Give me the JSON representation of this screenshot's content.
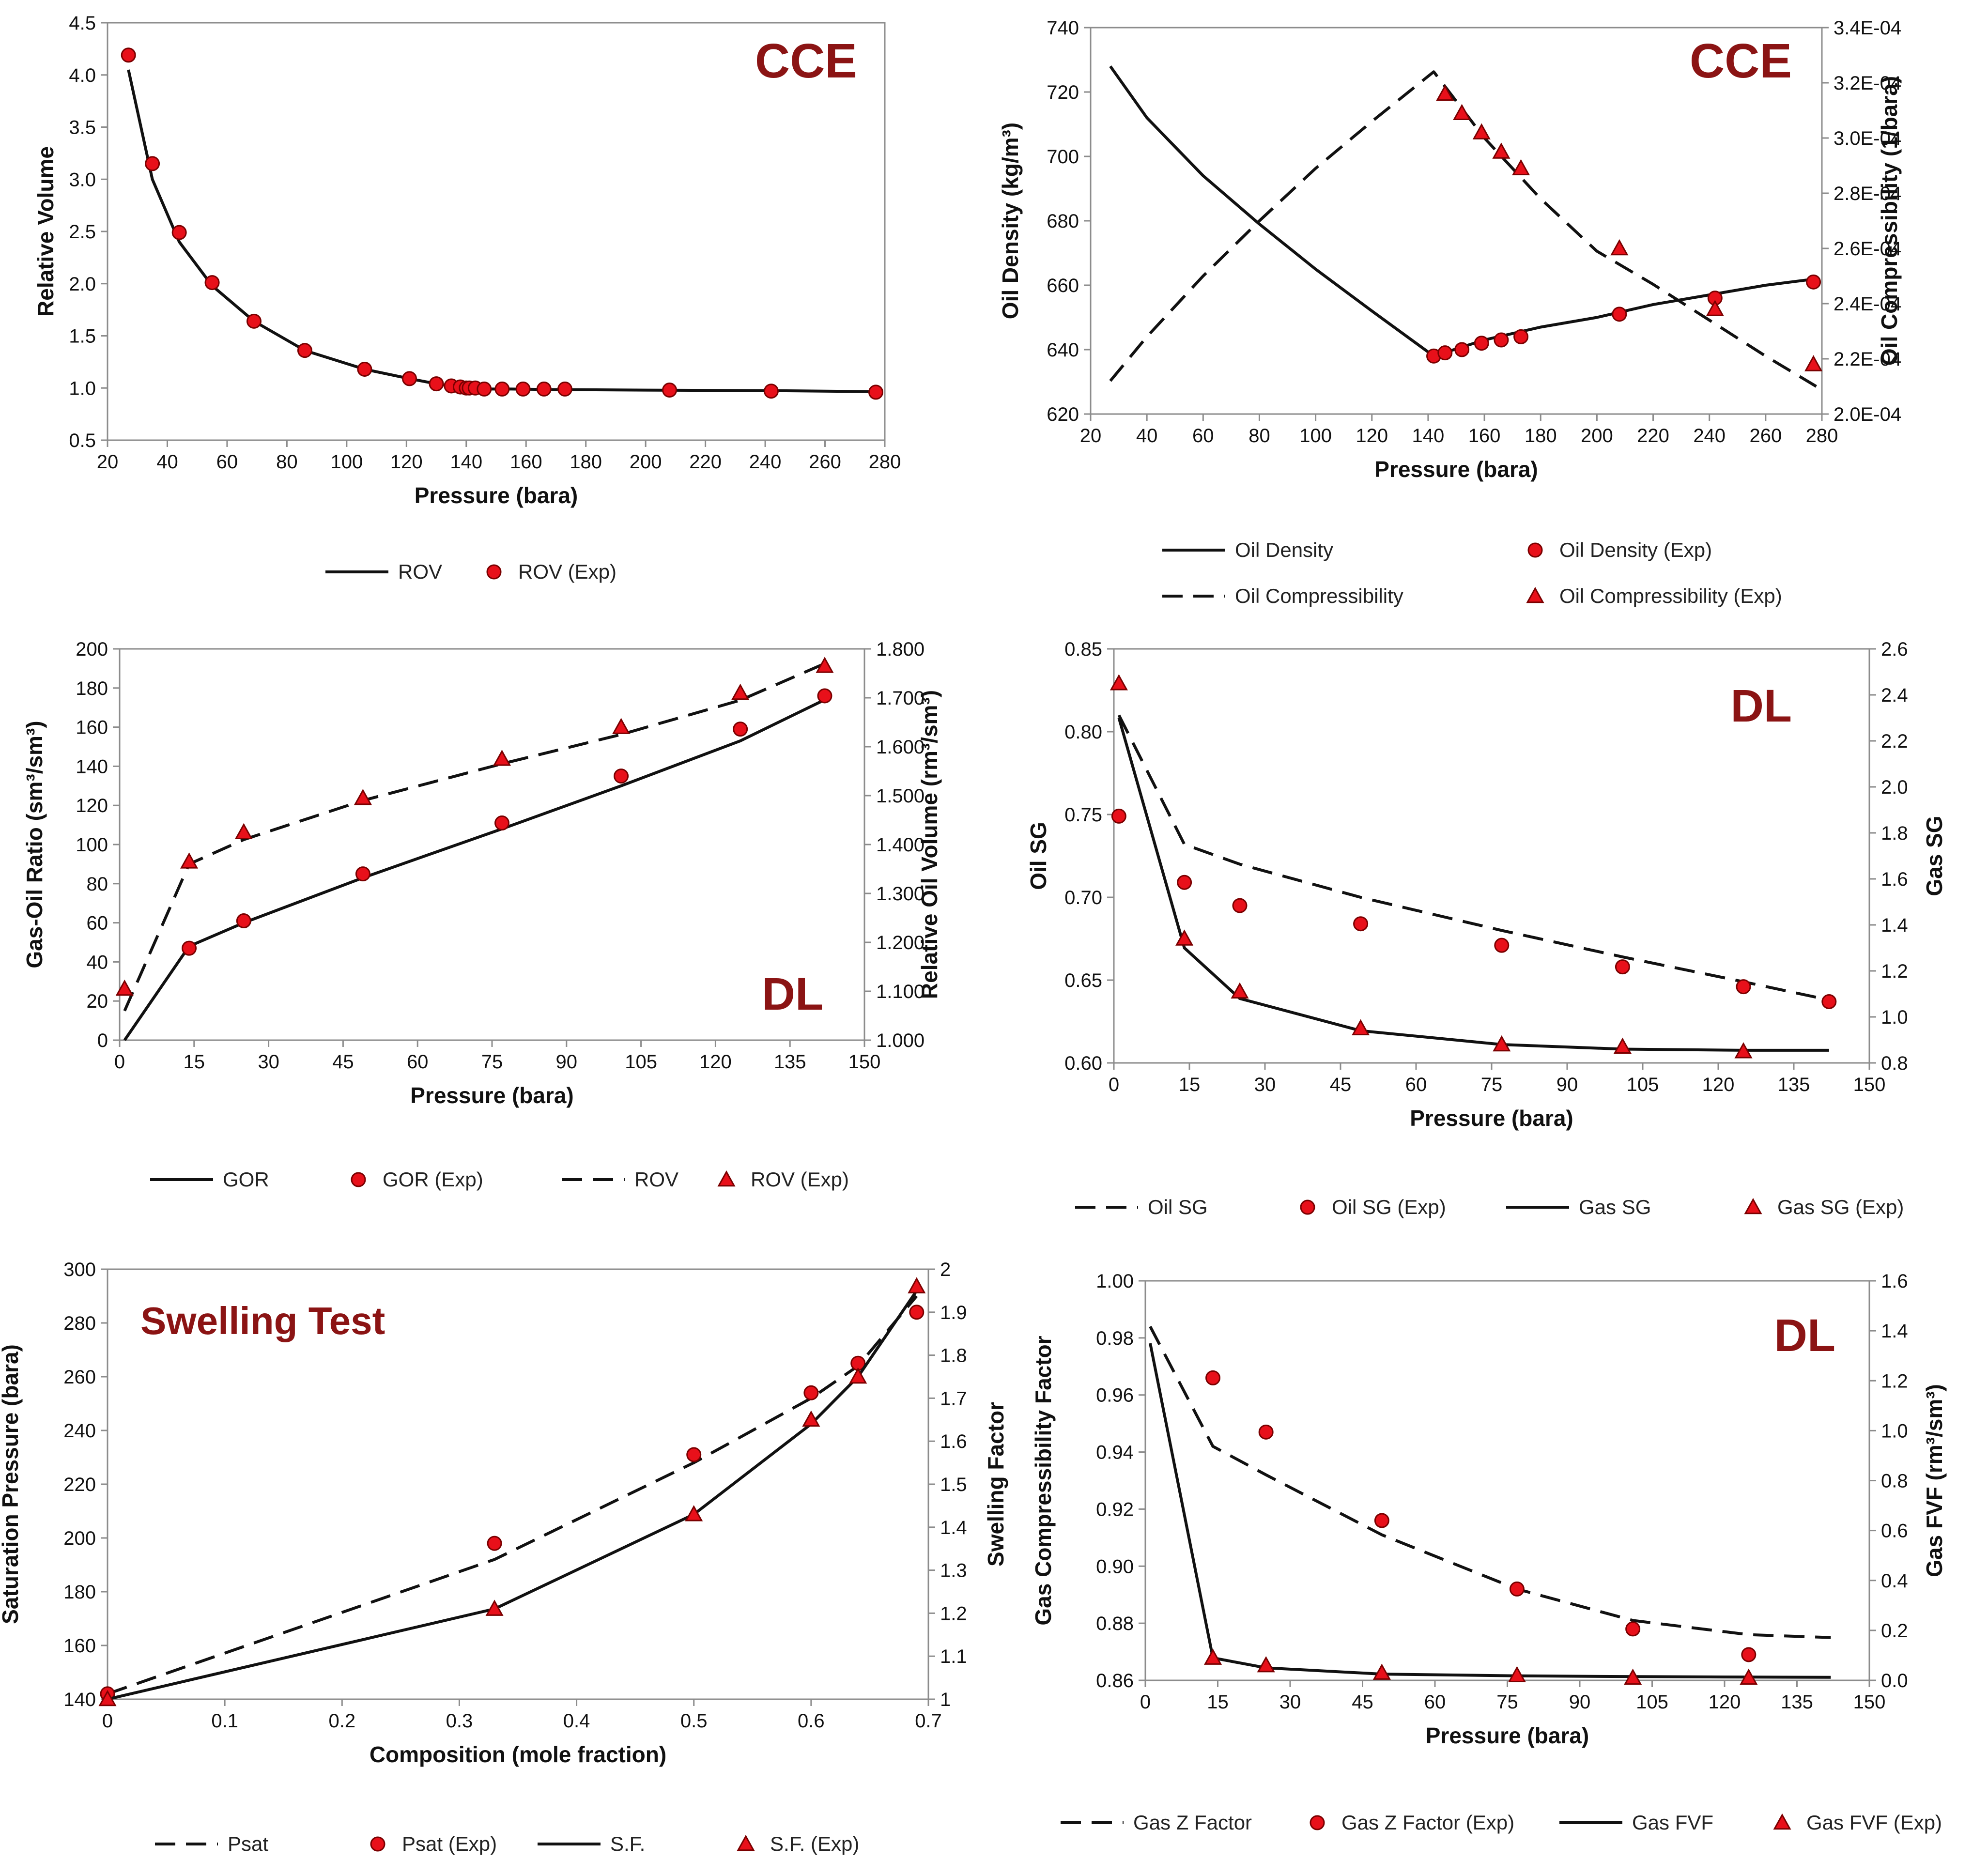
{
  "chart_data": [
    {
      "type": "line",
      "tag": "CCE",
      "xlabel": "Pressure (bara)",
      "ylabel": "Relative Volume",
      "xlim": [
        20,
        280
      ],
      "xticks": [
        20,
        40,
        60,
        80,
        100,
        120,
        140,
        160,
        180,
        200,
        220,
        240,
        260,
        280
      ],
      "ylim": [
        0.5,
        4.5
      ],
      "yticks": [
        0.5,
        1.0,
        1.5,
        2.0,
        2.5,
        3.0,
        3.5,
        4.0,
        4.5
      ],
      "ydecimals": 1,
      "series": [
        {
          "name": "ROV",
          "style": "solid",
          "axis": "left",
          "x": [
            27,
            35,
            44,
            55,
            69,
            86,
            106,
            121,
            130,
            137,
            141,
            146,
            155,
            170,
            200,
            240,
            278
          ],
          "y": [
            4.05,
            3.0,
            2.4,
            1.98,
            1.64,
            1.36,
            1.18,
            1.09,
            1.04,
            1.01,
            1.0,
            0.99,
            0.99,
            0.985,
            0.98,
            0.975,
            0.965
          ]
        },
        {
          "name": "ROV (Exp)",
          "marker": "circle",
          "axis": "left",
          "x": [
            27,
            35,
            44,
            55,
            69,
            86,
            106,
            121,
            130,
            135,
            138,
            140,
            141,
            143,
            146,
            152,
            159,
            166,
            173,
            208,
            242,
            277
          ],
          "y": [
            4.19,
            3.15,
            2.49,
            2.01,
            1.64,
            1.36,
            1.18,
            1.09,
            1.04,
            1.02,
            1.01,
            1.0,
            1.0,
            1.0,
            0.99,
            0.99,
            0.99,
            0.99,
            0.99,
            0.98,
            0.97,
            0.96
          ]
        }
      ],
      "legend": [
        "ROV",
        "ROV (Exp)"
      ]
    },
    {
      "type": "line",
      "tag": "CCE",
      "xlabel": "Pressure (bara)",
      "ylabel": "Oil Density (kg/m³)",
      "y2label": "Oil Compressibility (1/bara)",
      "xlim": [
        20,
        280
      ],
      "xticks": [
        20,
        40,
        60,
        80,
        100,
        120,
        140,
        160,
        180,
        200,
        220,
        240,
        260,
        280
      ],
      "ylim": [
        620,
        740
      ],
      "yticks": [
        620,
        640,
        660,
        680,
        700,
        720,
        740
      ],
      "ydecimals": 0,
      "y2lim": [
        0.0002,
        0.00034
      ],
      "y2ticks": [
        "2.0E-04",
        "2.2E-04",
        "2.4E-04",
        "2.6E-04",
        "2.8E-04",
        "3.0E-04",
        "3.2E-04",
        "3.4E-04"
      ],
      "series": [
        {
          "name": "Oil Density",
          "style": "solid",
          "axis": "left",
          "x": [
            27,
            40,
            60,
            80,
            100,
            120,
            142,
            160,
            180,
            200,
            220,
            240,
            260,
            278
          ],
          "y": [
            728,
            712,
            694,
            679,
            665,
            652,
            638,
            643,
            647,
            650,
            654,
            657,
            660,
            662
          ]
        },
        {
          "name": "Oil Density (Exp)",
          "marker": "circle",
          "axis": "left",
          "x": [
            142,
            146,
            152,
            159,
            166,
            173,
            208,
            242,
            277
          ],
          "y": [
            638,
            639,
            640,
            642,
            643,
            644,
            651,
            656,
            661
          ]
        },
        {
          "name": "Oil Compressibility",
          "style": "dashed",
          "axis": "right",
          "x": [
            27,
            40,
            60,
            80,
            100,
            120,
            142,
            160,
            180,
            200,
            220,
            240,
            260,
            278
          ],
          "y": [
            0.000212,
            0.000228,
            0.00025,
            0.00027,
            0.000289,
            0.000306,
            0.000324,
            0.0003,
            0.000278,
            0.000259,
            0.000247,
            0.000234,
            0.000221,
            0.00021
          ]
        },
        {
          "name": "Oil Compressibility (Exp)",
          "marker": "triangle",
          "axis": "right",
          "x": [
            146,
            152,
            159,
            166,
            173,
            208,
            242,
            277
          ],
          "y": [
            0.000316,
            0.000309,
            0.000302,
            0.000295,
            0.000289,
            0.00026,
            0.000238,
            0.000218
          ]
        }
      ],
      "legend": [
        "Oil Density",
        "Oil Density (Exp)",
        "Oil Compressibility",
        "Oil Compressibility (Exp)"
      ]
    },
    {
      "type": "line",
      "tag": "DL",
      "xlabel": "Pressure (bara)",
      "ylabel": "Gas-Oil Ratio (sm³/sm³)",
      "y2label": "Relative Oil Volume (rm³/sm³)",
      "xlim": [
        0,
        150
      ],
      "xticks": [
        0,
        15,
        30,
        45,
        60,
        75,
        90,
        105,
        120,
        135,
        150
      ],
      "ylim": [
        0,
        200
      ],
      "yticks": [
        0,
        20,
        40,
        60,
        80,
        100,
        120,
        140,
        160,
        180,
        200
      ],
      "ydecimals": 0,
      "y2lim": [
        1.0,
        1.8
      ],
      "y2ticks": [
        "1.000",
        "1.100",
        "1.200",
        "1.300",
        "1.400",
        "1.500",
        "1.600",
        "1.700",
        "1.800"
      ],
      "series": [
        {
          "name": "GOR",
          "style": "solid",
          "axis": "left",
          "x": [
            1,
            14,
            25,
            49,
            77,
            101,
            125,
            142
          ],
          "y": [
            0,
            48,
            60,
            83,
            108,
            130,
            153,
            174
          ]
        },
        {
          "name": "GOR (Exp)",
          "marker": "circle",
          "axis": "left",
          "x": [
            14,
            25,
            49,
            77,
            101,
            125,
            142
          ],
          "y": [
            47,
            61,
            85,
            111,
            135,
            159,
            176
          ]
        },
        {
          "name": "ROV",
          "style": "dashed",
          "axis": "right",
          "x": [
            1,
            14,
            25,
            49,
            77,
            101,
            125,
            142
          ],
          "y": [
            1.06,
            1.36,
            1.41,
            1.49,
            1.565,
            1.625,
            1.695,
            1.77
          ]
        },
        {
          "name": "ROV (Exp)",
          "marker": "triangle",
          "axis": "right",
          "x": [
            1,
            14,
            25,
            49,
            77,
            101,
            125,
            142
          ],
          "y": [
            1.105,
            1.365,
            1.425,
            1.495,
            1.575,
            1.64,
            1.71,
            1.765
          ]
        }
      ],
      "legend": [
        "GOR",
        "GOR (Exp)",
        "ROV",
        "ROV (Exp)"
      ]
    },
    {
      "type": "line",
      "tag": "DL",
      "xlabel": "Pressure (bara)",
      "ylabel": "Oil SG",
      "y2label": "Gas SG",
      "xlim": [
        0,
        150
      ],
      "xticks": [
        0,
        15,
        30,
        45,
        60,
        75,
        90,
        105,
        120,
        135,
        150
      ],
      "ylim": [
        0.6,
        0.85
      ],
      "yticks": [
        0.6,
        0.65,
        0.7,
        0.75,
        0.8,
        0.85
      ],
      "ydecimals": 2,
      "y2lim": [
        0.8,
        2.6
      ],
      "y2ticks": [
        "0.8",
        "1.0",
        "1.2",
        "1.4",
        "1.6",
        "1.8",
        "2.0",
        "2.2",
        "2.4",
        "2.6"
      ],
      "series": [
        {
          "name": "Oil SG",
          "style": "dashed",
          "axis": "left",
          "x": [
            1,
            14,
            25,
            49,
            77,
            101,
            125,
            142
          ],
          "y": [
            0.81,
            0.732,
            0.72,
            0.7,
            0.68,
            0.664,
            0.649,
            0.638
          ]
        },
        {
          "name": "Oil SG (Exp)",
          "marker": "circle",
          "axis": "left",
          "x": [
            1,
            14,
            25,
            49,
            77,
            101,
            125,
            142
          ],
          "y": [
            0.749,
            0.709,
            0.695,
            0.684,
            0.671,
            0.658,
            0.646,
            0.637
          ]
        },
        {
          "name": "Gas SG",
          "style": "solid",
          "axis": "right",
          "x": [
            1,
            14,
            25,
            49,
            77,
            101,
            125,
            142
          ],
          "y": [
            2.3,
            1.3,
            1.08,
            0.94,
            0.88,
            0.86,
            0.855,
            0.855
          ]
        },
        {
          "name": "Gas SG (Exp)",
          "marker": "triangle",
          "axis": "right",
          "x": [
            1,
            14,
            25,
            49,
            77,
            101,
            125
          ],
          "y": [
            2.45,
            1.34,
            1.11,
            0.95,
            0.88,
            0.87,
            0.85
          ]
        }
      ],
      "legend": [
        "Oil SG",
        "Oil SG (Exp)",
        "Gas SG",
        "Gas SG (Exp)"
      ]
    },
    {
      "type": "line",
      "tag": "Swelling Test",
      "xlabel": "Composition (mole fraction)",
      "ylabel": "Saturation Pressure (bara)",
      "y2label": "Swelling Factor",
      "xlim": [
        0,
        0.7
      ],
      "xticks": [
        0,
        0.1,
        0.2,
        0.3,
        0.4,
        0.5,
        0.6,
        0.7
      ],
      "ylim": [
        140,
        300
      ],
      "yticks": [
        140,
        160,
        180,
        200,
        220,
        240,
        260,
        280,
        300
      ],
      "ydecimals": 0,
      "y2lim": [
        1.0,
        2.0
      ],
      "y2ticks": [
        "1",
        "1.1",
        "1.2",
        "1.3",
        "1.4",
        "1.5",
        "1.6",
        "1.7",
        "1.8",
        "1.9",
        "2"
      ],
      "series": [
        {
          "name": "Psat",
          "style": "dashed",
          "axis": "left",
          "x": [
            0,
            0.33,
            0.5,
            0.6,
            0.64,
            0.69
          ],
          "y": [
            142,
            192,
            228,
            252,
            264,
            290
          ]
        },
        {
          "name": "Psat (Exp)",
          "marker": "circle",
          "axis": "left",
          "x": [
            0,
            0.33,
            0.5,
            0.6,
            0.64,
            0.69
          ],
          "y": [
            142,
            198,
            231,
            254,
            265,
            284
          ]
        },
        {
          "name": "S.F.",
          "style": "solid",
          "axis": "right",
          "x": [
            0,
            0.33,
            0.5,
            0.6,
            0.64,
            0.69
          ],
          "y": [
            1.0,
            1.21,
            1.43,
            1.64,
            1.75,
            1.95
          ]
        },
        {
          "name": "S.F. (Exp)",
          "marker": "triangle",
          "axis": "right",
          "x": [
            0,
            0.33,
            0.5,
            0.6,
            0.64,
            0.69
          ],
          "y": [
            1.0,
            1.21,
            1.43,
            1.65,
            1.75,
            1.96
          ]
        }
      ],
      "legend": [
        "Psat",
        "Psat (Exp)",
        "S.F.",
        "S.F. (Exp)"
      ]
    },
    {
      "type": "line",
      "tag": "DL",
      "xlabel": "Pressure (bara)",
      "ylabel": "Gas Compressibility Factor",
      "y2label": "Gas FVF (rm³/sm³)",
      "xlim": [
        0,
        150
      ],
      "xticks": [
        0,
        15,
        30,
        45,
        60,
        75,
        90,
        105,
        120,
        135,
        150
      ],
      "ylim": [
        0.86,
        1.0
      ],
      "yticks": [
        0.86,
        0.88,
        0.9,
        0.92,
        0.94,
        0.96,
        0.98,
        1.0
      ],
      "ydecimals": 2,
      "y2lim": [
        0,
        1.6
      ],
      "y2ticks": [
        "0.0",
        "0.2",
        "0.4",
        "0.6",
        "0.8",
        "1.0",
        "1.2",
        "1.4",
        "1.6"
      ],
      "series": [
        {
          "name": "Gas Z Factor",
          "style": "dashed",
          "axis": "left",
          "x": [
            1,
            14,
            25,
            49,
            77,
            101,
            125,
            142
          ],
          "y": [
            0.984,
            0.942,
            0.932,
            0.911,
            0.892,
            0.881,
            0.876,
            0.875
          ]
        },
        {
          "name": "Gas Z Factor (Exp)",
          "marker": "circle",
          "axis": "left",
          "x": [
            14,
            25,
            49,
            77,
            101,
            125
          ],
          "y": [
            0.966,
            0.947,
            0.916,
            0.892,
            0.878,
            0.869
          ]
        },
        {
          "name": "Gas FVF",
          "style": "solid",
          "axis": "right",
          "x": [
            1,
            14,
            25,
            49,
            77,
            101,
            125,
            142
          ],
          "y": [
            1.35,
            0.09,
            0.05,
            0.025,
            0.018,
            0.015,
            0.013,
            0.012
          ]
        },
        {
          "name": "Gas FVF (Exp)",
          "marker": "triangle",
          "axis": "right",
          "x": [
            14,
            25,
            49,
            77,
            101,
            125
          ],
          "y": [
            0.09,
            0.06,
            0.03,
            0.02,
            0.01,
            0.01
          ]
        }
      ],
      "legend": [
        "Gas Z Factor",
        "Gas Z Factor (Exp)",
        "Gas FVF",
        "Gas FVF (Exp)"
      ]
    }
  ],
  "colors": {
    "axis": "#8c8c8c",
    "line": "#111111",
    "marker_fill": "#e8101a",
    "marker_stroke": "#7a0000",
    "tag": "#8b1414"
  }
}
